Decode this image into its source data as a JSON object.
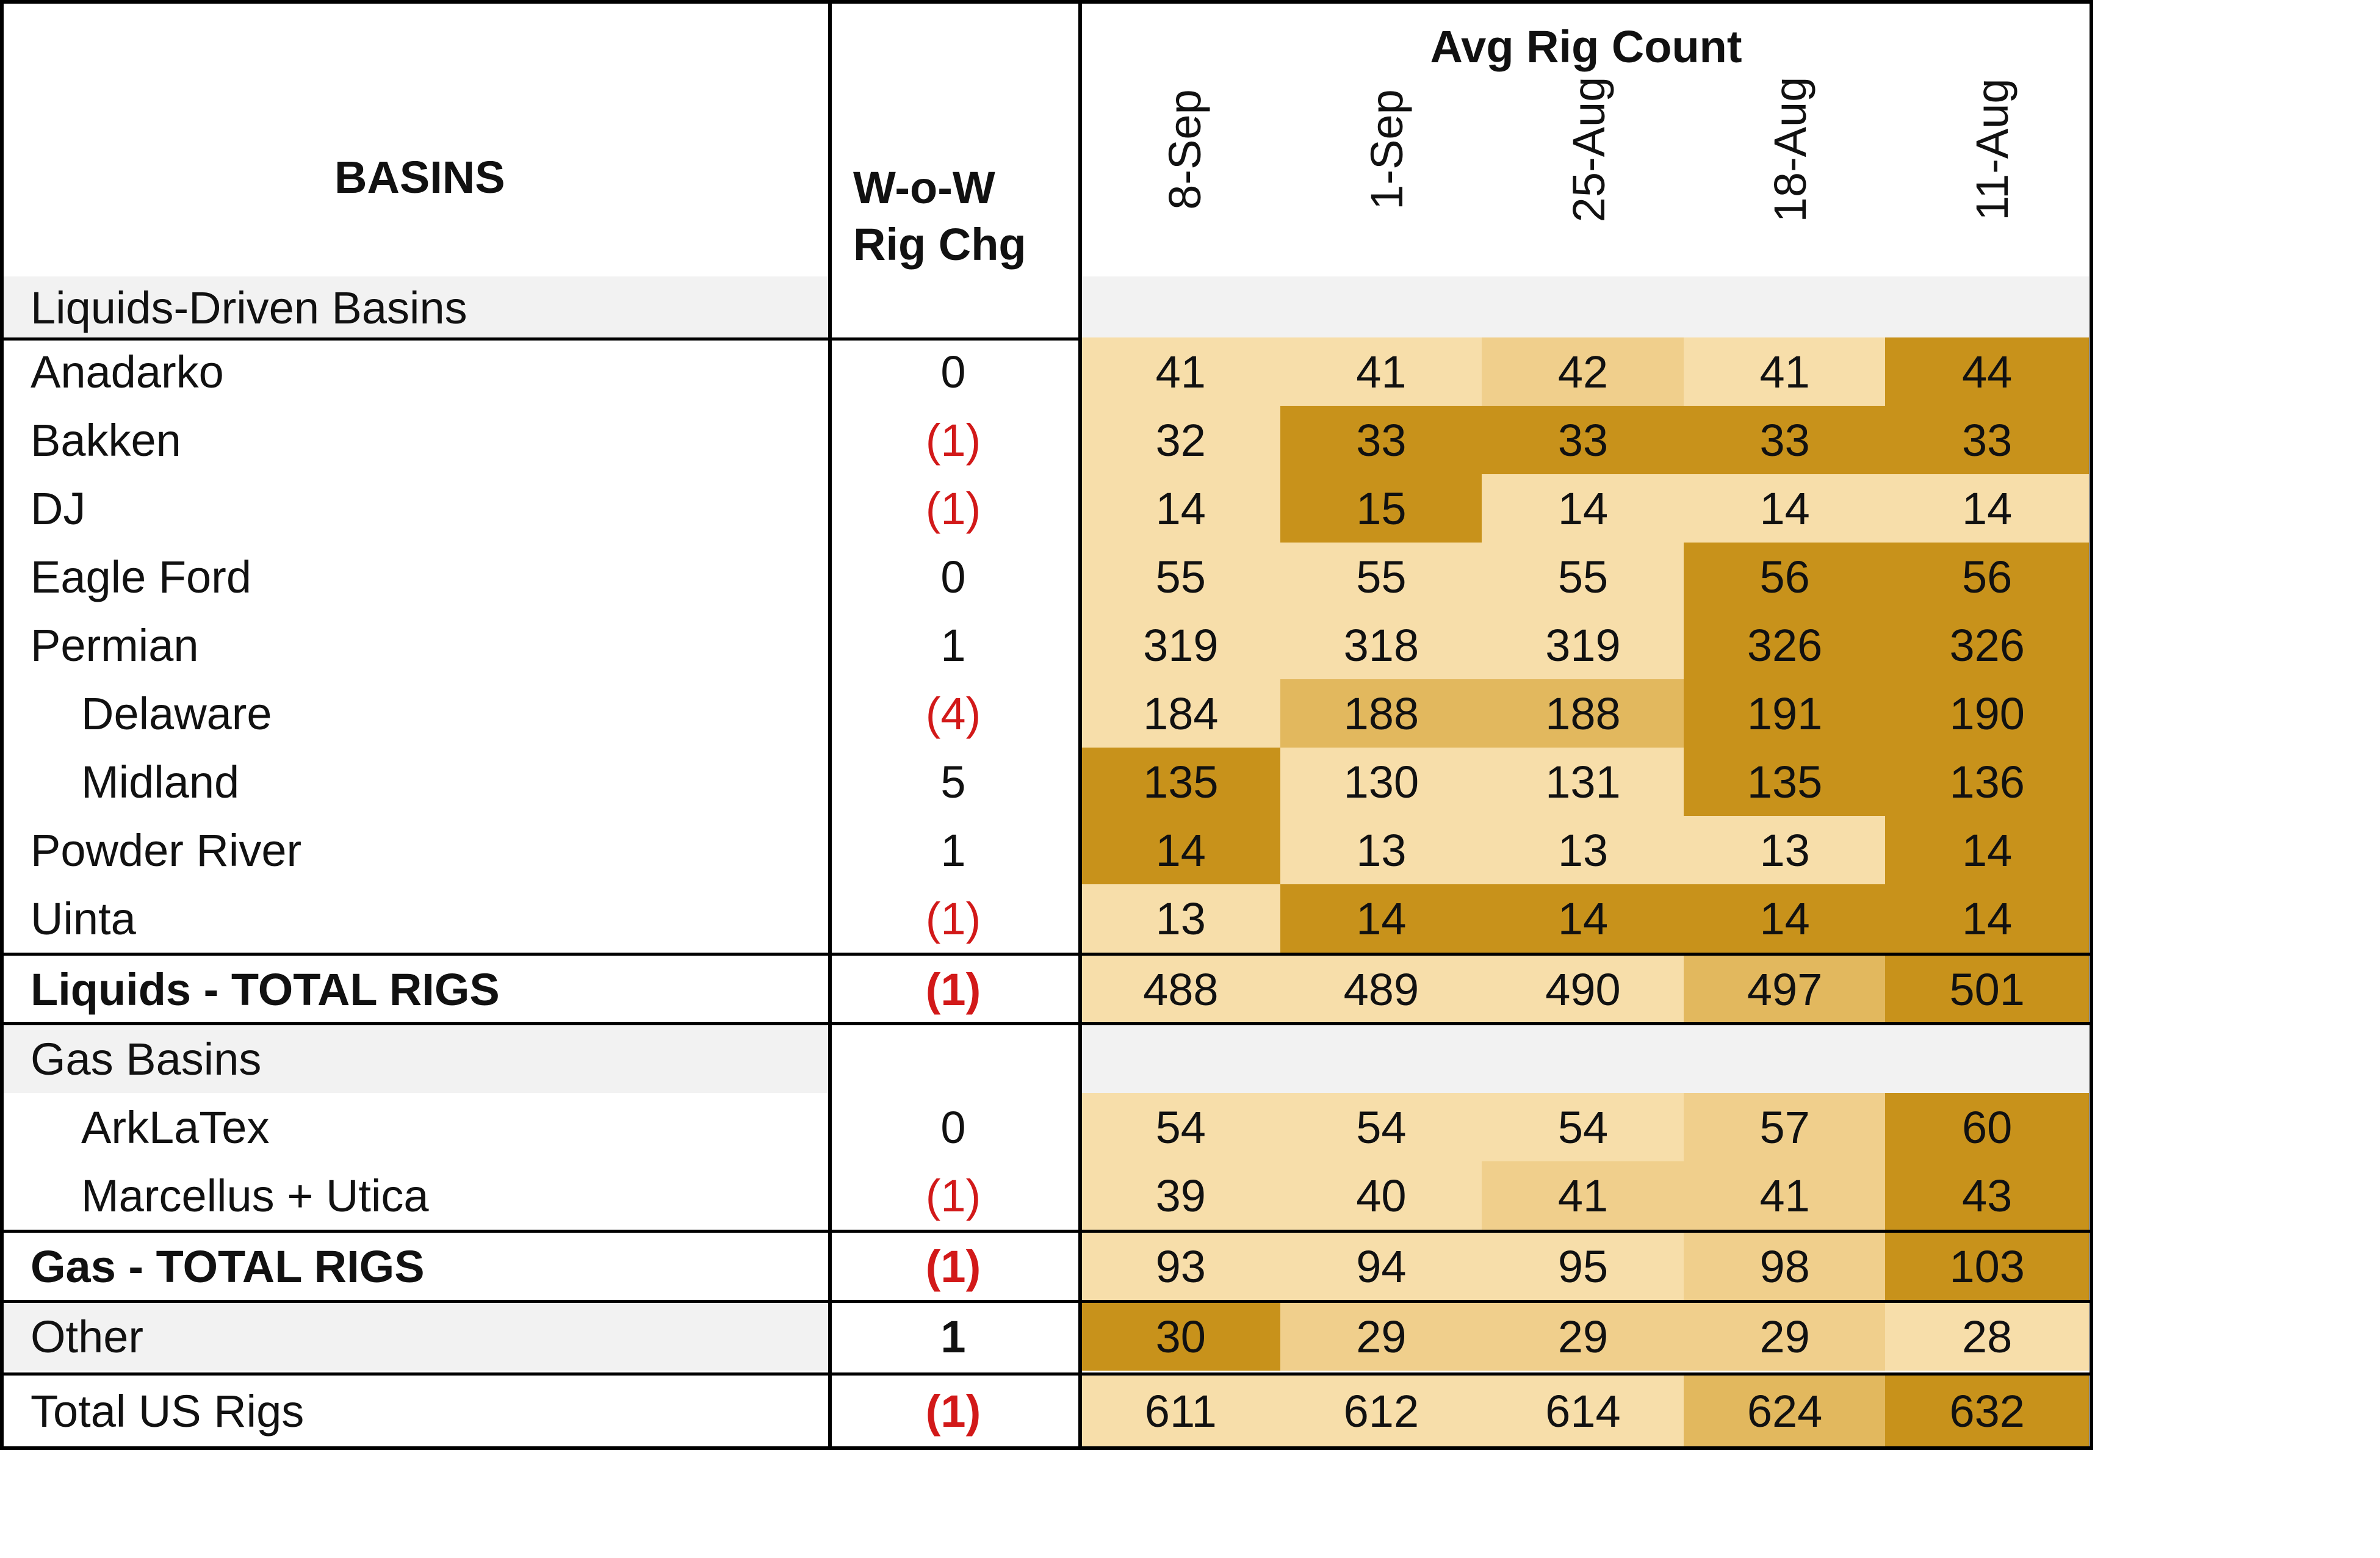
{
  "chart_data": {
    "type": "table",
    "title": "Avg Rig Count",
    "header": {
      "basins_label": "BASINS",
      "wow_label_line1": "W-o-W",
      "wow_label_line2": "Rig Chg",
      "group_label": "Avg Rig Count",
      "dates": [
        "8-Sep",
        "1-Sep",
        "25-Aug",
        "18-Aug",
        "11-Aug"
      ]
    },
    "rows": [
      {
        "kind": "section",
        "label": "Liquids-Driven Basins"
      },
      {
        "kind": "data",
        "label": "Anadarko",
        "wow": "0",
        "values": [
          41,
          41,
          42,
          41,
          44
        ]
      },
      {
        "kind": "data",
        "label": "Bakken",
        "wow": "(1)",
        "values": [
          32,
          33,
          33,
          33,
          33
        ]
      },
      {
        "kind": "data",
        "label": "DJ",
        "wow": "(1)",
        "values": [
          14,
          15,
          14,
          14,
          14
        ]
      },
      {
        "kind": "data",
        "label": "Eagle Ford",
        "wow": "0",
        "values": [
          55,
          55,
          55,
          56,
          56
        ]
      },
      {
        "kind": "data",
        "label": "Permian",
        "wow": "1",
        "values": [
          319,
          318,
          319,
          326,
          326
        ]
      },
      {
        "kind": "data",
        "label": "Delaware",
        "indent": true,
        "wow": "(4)",
        "values": [
          184,
          188,
          188,
          191,
          190
        ]
      },
      {
        "kind": "data",
        "label": "Midland",
        "indent": true,
        "wow": "5",
        "values": [
          135,
          130,
          131,
          135,
          136
        ]
      },
      {
        "kind": "data",
        "label": "Powder River",
        "wow": "1",
        "values": [
          14,
          13,
          13,
          13,
          14
        ]
      },
      {
        "kind": "data",
        "label": "Uinta",
        "wow": "(1)",
        "values": [
          13,
          14,
          14,
          14,
          14
        ]
      },
      {
        "kind": "total",
        "label": "Liquids - TOTAL RIGS",
        "wow": "(1)",
        "values": [
          488,
          489,
          490,
          497,
          501
        ]
      },
      {
        "kind": "section",
        "label": "Gas Basins"
      },
      {
        "kind": "data",
        "label": "ArkLaTex",
        "indent": true,
        "wow": "0",
        "values": [
          54,
          54,
          54,
          57,
          60
        ]
      },
      {
        "kind": "data",
        "label": "Marcellus + Utica",
        "indent": true,
        "wow": "(1)",
        "values": [
          39,
          40,
          41,
          41,
          43
        ]
      },
      {
        "kind": "total",
        "label": "Gas - TOTAL RIGS",
        "wow": "(1)",
        "values": [
          93,
          94,
          95,
          98,
          103
        ]
      },
      {
        "kind": "other",
        "label": "Other",
        "wow": "1",
        "values": [
          30,
          29,
          29,
          29,
          28
        ]
      },
      {
        "kind": "grand",
        "label": "Total US Rigs",
        "wow": "(1)",
        "values": [
          611,
          612,
          614,
          624,
          632
        ]
      }
    ],
    "heat_colors": [
      "#f7deaa",
      "#f0cf8c",
      "#e2b85e",
      "#c8921b"
    ],
    "negative_color": "#d21919",
    "section_shade": "#f2f2f2"
  }
}
